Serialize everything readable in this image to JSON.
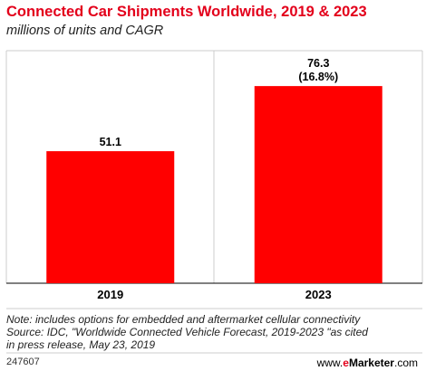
{
  "chart_data": {
    "type": "bar",
    "title": "Connected Car Shipments Worldwide, 2019 & 2023",
    "subtitle": "millions of units and CAGR",
    "categories": [
      "2019",
      "2023"
    ],
    "values": [
      51.1,
      76.3
    ],
    "data_labels": [
      "51.1",
      "76.3"
    ],
    "annotations": [
      "",
      "(16.8%)"
    ],
    "ylim": [
      0,
      90
    ],
    "grid": false,
    "bar_color": "#ff0000"
  },
  "notes": {
    "line1": "Note: includes options for embedded and aftermarket cellular connectivity",
    "line2": "Source: IDC, \"Worldwide Connected Vehicle Forecast, 2019-2023 \"as cited",
    "line3": "in press release, May 23, 2019"
  },
  "footer": {
    "chart_id": "247607",
    "brand_prefix": "www.",
    "brand_e": "e",
    "brand_name": "Marketer",
    "brand_suffix": ".com"
  }
}
